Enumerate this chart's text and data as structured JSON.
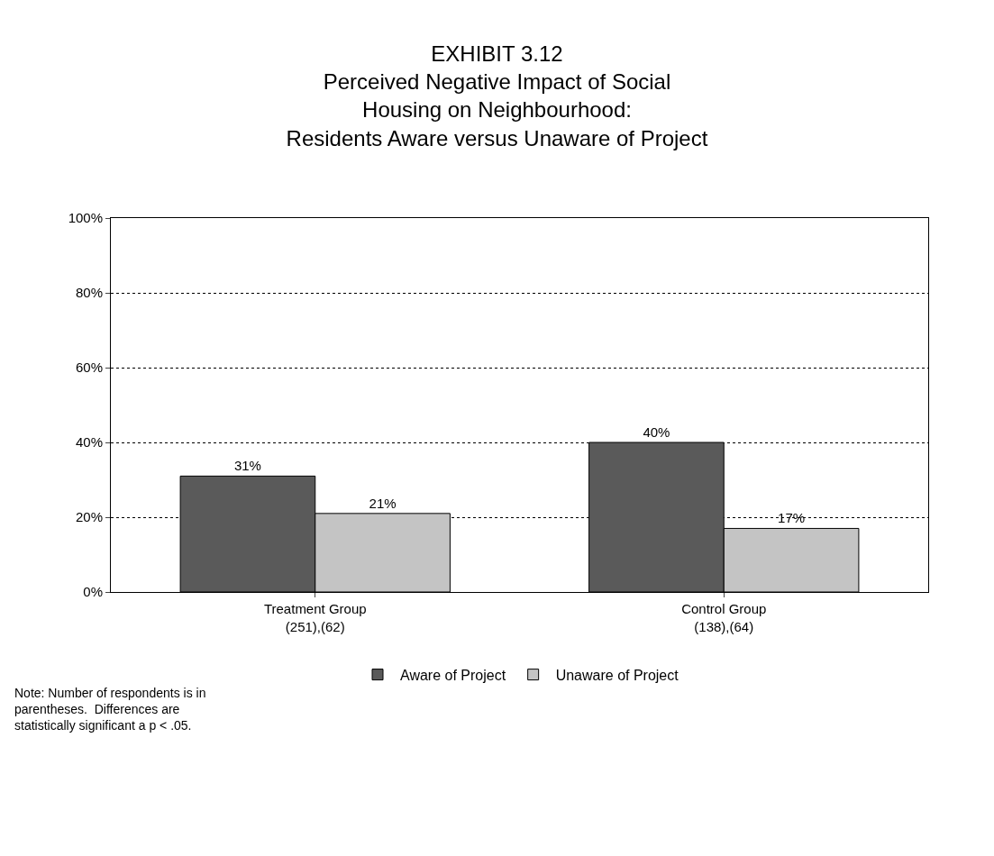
{
  "chart_data": {
    "type": "bar",
    "title": "EXHIBIT 3.12\nPerceived Negative Impact of Social\nHousing on Neighbourhood:\nResidents Aware versus Unaware of Project",
    "categories": [
      "Treatment Group\n(251),(62)",
      "Control Group\n(138),(64)"
    ],
    "series": [
      {
        "name": "Aware of Project",
        "color": "#5a5a5a",
        "values": [
          31,
          40
        ],
        "value_labels": [
          "31%",
          "40%"
        ]
      },
      {
        "name": "Unaware of Project",
        "color": "#c4c4c4",
        "values": [
          21,
          17
        ],
        "value_labels": [
          "21%",
          "17%"
        ]
      }
    ],
    "ylim": [
      0,
      100
    ],
    "yticks": [
      {
        "value": 0,
        "label": "0%"
      },
      {
        "value": 20,
        "label": "20%"
      },
      {
        "value": 40,
        "label": "40%"
      },
      {
        "value": 60,
        "label": "60%"
      },
      {
        "value": 80,
        "label": "80%"
      },
      {
        "value": 100,
        "label": "100%"
      }
    ],
    "grid": "y",
    "legend": "bottom",
    "annotations": [
      "Note: Number of respondents is in\nparentheses.  Differences are\nstatistically significant a p < .05."
    ]
  }
}
